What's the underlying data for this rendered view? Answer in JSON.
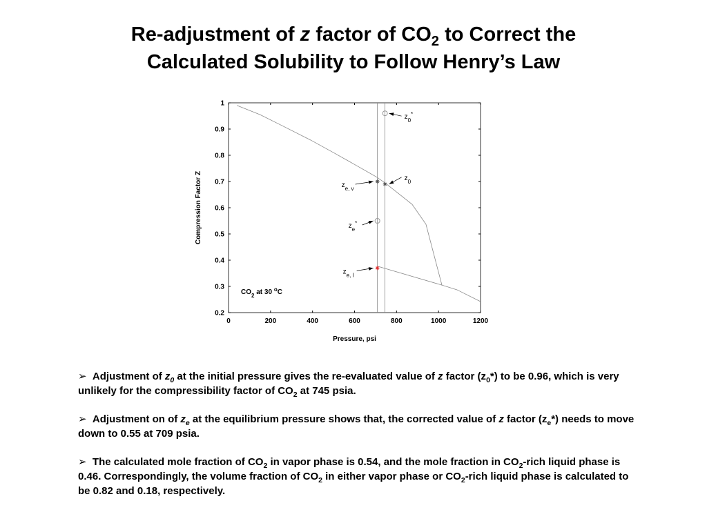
{
  "title": {
    "line1": [
      {
        "text": "Re-adjustment of "
      },
      {
        "text": "z",
        "style": "i"
      },
      {
        "text": " factor of CO"
      },
      {
        "text": "2",
        "style": "sub"
      },
      {
        "text": " to Correct the"
      }
    ],
    "line2": [
      {
        "text": "Calculated Solubility to Follow Henry’s Law"
      }
    ]
  },
  "chart_data": {
    "type": "line",
    "xlabel": "Pressure, psi",
    "ylabel": "Compression Factor Z",
    "xlim": [
      0,
      1200
    ],
    "xticks": [
      0,
      200,
      400,
      600,
      800,
      1000,
      1200
    ],
    "ylim": [
      0.2,
      1
    ],
    "yticks": [
      0.2,
      0.3,
      0.4,
      0.5,
      0.6,
      0.7,
      0.8,
      0.9,
      1
    ],
    "series": [
      {
        "color": "#888888",
        "x": [
          40,
          150,
          250,
          391,
          500,
          600,
          703,
          745,
          800,
          874,
          940,
          1016,
          1088,
          1200
        ],
        "values": [
          0.99,
          0.955,
          0.915,
          0.858,
          0.81,
          0.765,
          0.718,
          0.695,
          0.66,
          0.613,
          0.537,
          0.305,
          0.287,
          0.242
        ]
      },
      {
        "color": "#888888",
        "x": [
          713,
          1016
        ],
        "values": [
          0.376,
          0.305
        ]
      }
    ],
    "vlines": [
      709,
      745
    ],
    "points": [
      {
        "x": 745,
        "y": 0.96,
        "marker": "circle",
        "color": "#999999",
        "label": [
          {
            "text": "z"
          },
          {
            "text": "0",
            "style": "sub"
          },
          {
            "text": "*",
            "style": "sup"
          }
        ]
      },
      {
        "x": 745,
        "y": 0.69,
        "marker": "star",
        "color": "#555555",
        "label": [
          {
            "text": "z"
          },
          {
            "text": "0",
            "style": "sub"
          }
        ]
      },
      {
        "x": 709,
        "y": 0.7,
        "marker": "star",
        "color": "#555555",
        "label": [
          {
            "text": "z"
          },
          {
            "text": "e, v",
            "style": "sub"
          }
        ]
      },
      {
        "x": 709,
        "y": 0.55,
        "marker": "circle",
        "color": "#999999",
        "label": [
          {
            "text": "z"
          },
          {
            "text": "e",
            "style": "sub"
          },
          {
            "text": "*",
            "style": "sup"
          }
        ]
      },
      {
        "x": 709,
        "y": 0.37,
        "marker": "star",
        "color": "#e03030",
        "label": [
          {
            "text": "z"
          },
          {
            "text": "e, l",
            "style": "sub"
          }
        ]
      }
    ],
    "note": [
      {
        "text": "CO"
      },
      {
        "text": "2",
        "style": "sub"
      },
      {
        "text": " at 30 "
      },
      {
        "text": "o",
        "style": "sup"
      },
      {
        "text": "C"
      }
    ]
  },
  "bullets": [
    [
      {
        "text": "Adjustment of "
      },
      {
        "text": "z",
        "style": "i"
      },
      {
        "text": "0",
        "style": "isub"
      },
      {
        "text": " at the initial pressure gives the re-evaluated value of "
      },
      {
        "text": "z",
        "style": "i"
      },
      {
        "text": " factor (z"
      },
      {
        "text": "0",
        "style": "sub"
      },
      {
        "text": "*) to be 0.96, which is very unlikely for the compressibility factor of CO"
      },
      {
        "text": "2",
        "style": "sub"
      },
      {
        "text": " at 745 psia."
      }
    ],
    [
      {
        "text": "Adjustment on of "
      },
      {
        "text": "z",
        "style": "i"
      },
      {
        "text": "e",
        "style": "isub"
      },
      {
        "text": " at the equilibrium pressure shows that, the corrected value of "
      },
      {
        "text": "z",
        "style": "i"
      },
      {
        "text": " factor  (z"
      },
      {
        "text": "e",
        "style": "sub"
      },
      {
        "text": "*) needs to move down to 0.55 at 709 psia."
      }
    ],
    [
      {
        "text": "The calculated mole fraction of CO"
      },
      {
        "text": "2",
        "style": "sub"
      },
      {
        "text": " in vapor phase is 0.54, and the mole fraction in CO"
      },
      {
        "text": "2",
        "style": "sub"
      },
      {
        "text": "-rich liquid phase is 0.46. Correspondingly, the volume fraction of CO"
      },
      {
        "text": "2",
        "style": "sub"
      },
      {
        "text": " in either vapor phase or CO"
      },
      {
        "text": "2",
        "style": "sub"
      },
      {
        "text": "-rich liquid phase is calculated to be 0.82 and 0.18, respectively."
      }
    ]
  ]
}
